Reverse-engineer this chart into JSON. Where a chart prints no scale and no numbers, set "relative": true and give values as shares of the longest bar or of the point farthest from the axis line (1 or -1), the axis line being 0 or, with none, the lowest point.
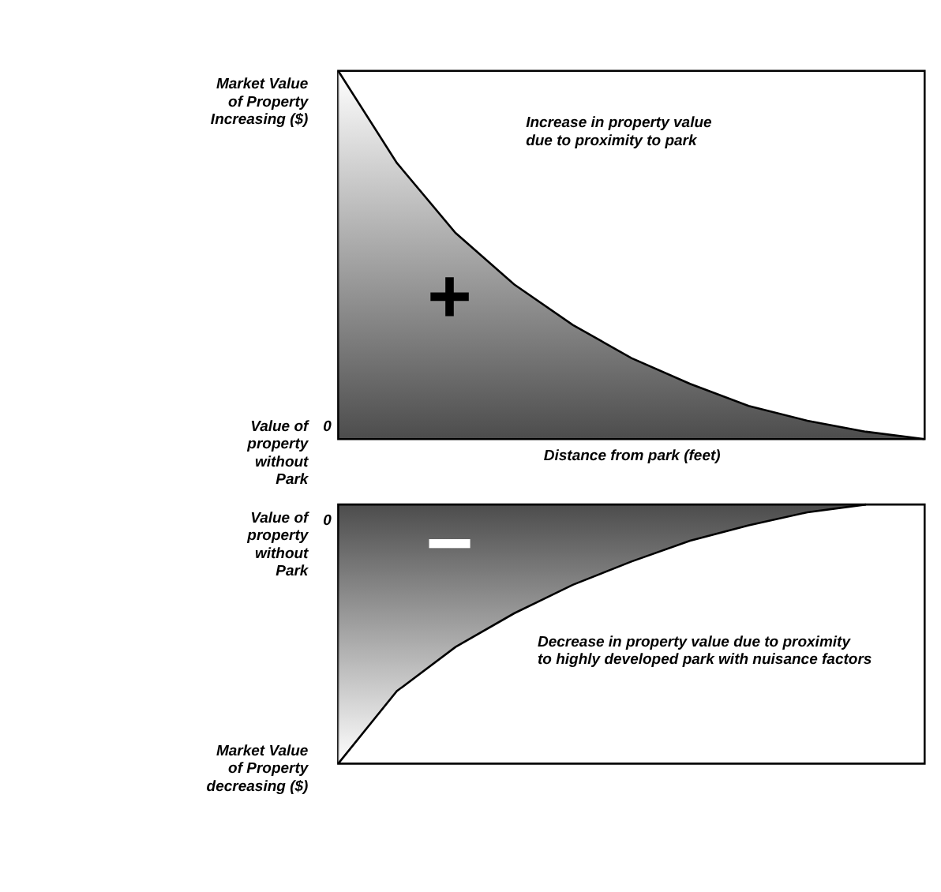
{
  "chart_data": [
    {
      "type": "area",
      "relative": true,
      "xlabel": "Distance from park (feet)",
      "categories": [
        null,
        null,
        null,
        null,
        null,
        null,
        null,
        null,
        null,
        null,
        null
      ],
      "values": [
        1,
        0.75,
        0.56,
        0.42,
        0.31,
        0.22,
        0.15,
        0.09,
        0.05,
        0.02,
        0
      ],
      "color": "#000000",
      "annotations": [
        "Market Value\nof Property\nIncreasing ($)",
        "Value of\nproperty\nwithout\nPark",
        "0",
        "+",
        "Increase in property value\ndue to proximity to park"
      ]
    },
    {
      "type": "area",
      "relative": true,
      "categories": [
        null,
        null,
        null,
        null,
        null,
        null,
        null,
        null,
        null,
        null,
        null
      ],
      "values": [
        -1,
        -0.72,
        -0.55,
        -0.42,
        -0.31,
        -0.22,
        -0.14,
        -0.08,
        -0.03,
        0,
        null
      ],
      "color": "#000000",
      "annotations": [
        "Value of\nproperty\nwithout\nPark",
        "Market Value\nof Property\ndecreasing ($)",
        "0",
        "−",
        "Decrease in property value due to proximity\nto highly developed park with nuisance factors"
      ]
    }
  ]
}
